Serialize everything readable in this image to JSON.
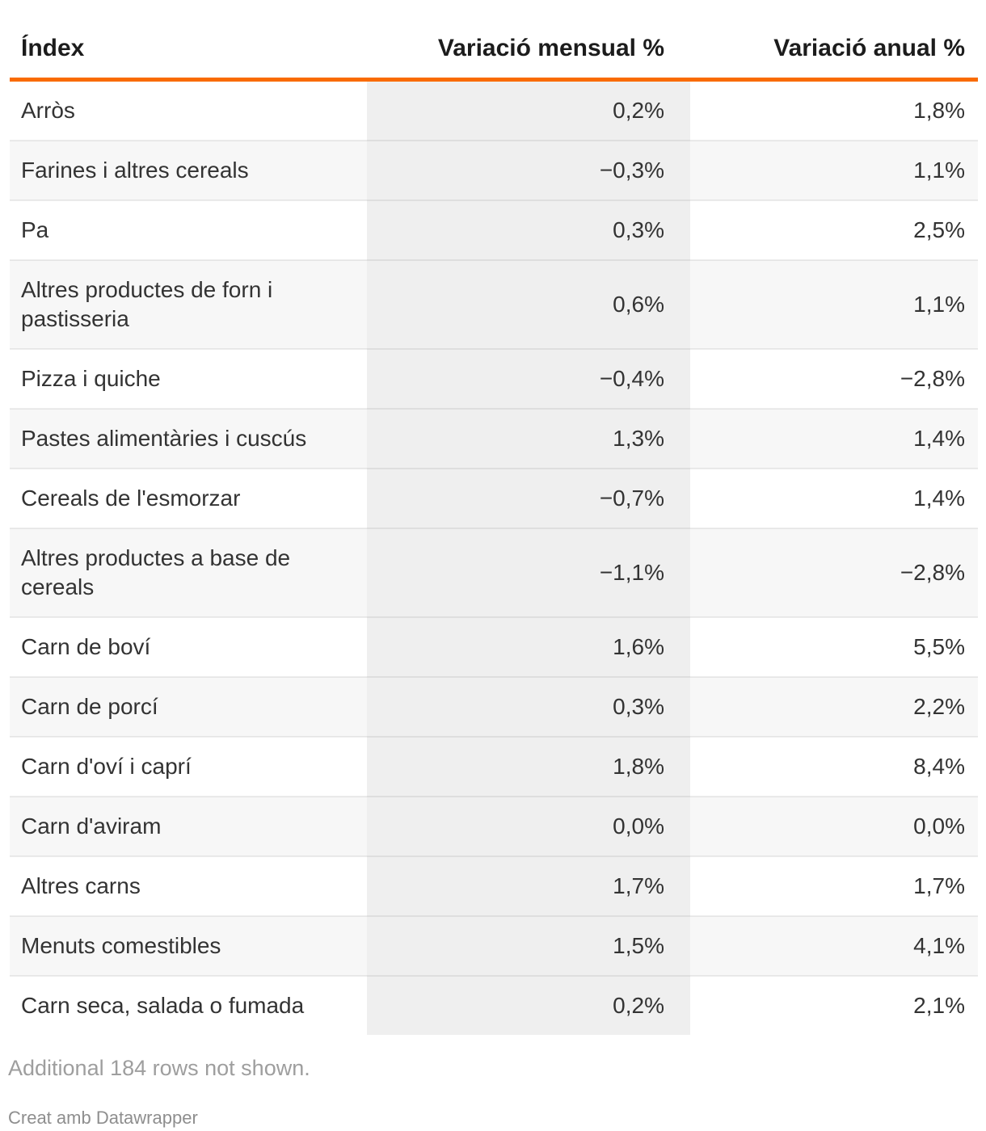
{
  "chart_data": {
    "type": "table",
    "columns": [
      "Índex",
      "Variació mensual %",
      "Variació anual %"
    ],
    "rows": [
      [
        "Arròs",
        "0,2%",
        "1,8%"
      ],
      [
        "Farines i altres cereals",
        "−0,3%",
        "1,1%"
      ],
      [
        "Pa",
        "0,3%",
        "2,5%"
      ],
      [
        "Altres productes de forn i pastisseria",
        "0,6%",
        "1,1%"
      ],
      [
        "Pizza i quiche",
        "−0,4%",
        "−2,8%"
      ],
      [
        "Pastes alimentàries i cuscús",
        "1,3%",
        "1,4%"
      ],
      [
        "Cereals de l'esmorzar",
        "−0,7%",
        "1,4%"
      ],
      [
        "Altres productes a base de cereals",
        "−1,1%",
        "−2,8%"
      ],
      [
        "Carn de boví",
        "1,6%",
        "5,5%"
      ],
      [
        "Carn de porcí",
        "0,3%",
        "2,2%"
      ],
      [
        "Carn d'oví i caprí",
        "1,8%",
        "8,4%"
      ],
      [
        "Carn d'aviram",
        "0,0%",
        "0,0%"
      ],
      [
        "Altres carns",
        "1,7%",
        "1,7%"
      ],
      [
        "Menuts comestibles",
        "1,5%",
        "4,1%"
      ],
      [
        "Carn seca, salada o fumada",
        "0,2%",
        "2,1%"
      ]
    ],
    "series_numeric": [
      {
        "name": "Variació mensual %",
        "values": [
          0.2,
          -0.3,
          0.3,
          0.6,
          -0.4,
          1.3,
          -0.7,
          -1.1,
          1.6,
          0.3,
          1.8,
          0.0,
          1.7,
          1.5,
          0.2
        ]
      },
      {
        "name": "Variació anual %",
        "values": [
          1.8,
          1.1,
          2.5,
          1.1,
          -2.8,
          1.4,
          1.4,
          -2.8,
          5.5,
          2.2,
          8.4,
          0.0,
          1.7,
          4.1,
          2.1
        ]
      }
    ],
    "layout": {
      "striped_rows": true,
      "highlighted_column": "Variació mensual %",
      "header_rule": "orange"
    }
  },
  "footer": {
    "note": "Additional 184 rows not shown.",
    "attribution": "Creat amb Datawrapper"
  },
  "colors": {
    "accent_rule": "#f96b00",
    "stripe": "#f7f7f7",
    "highlight_column": "#efefef",
    "text": "#333333",
    "header_text": "#1c1c1c",
    "muted_text": "#9e9e9e"
  }
}
